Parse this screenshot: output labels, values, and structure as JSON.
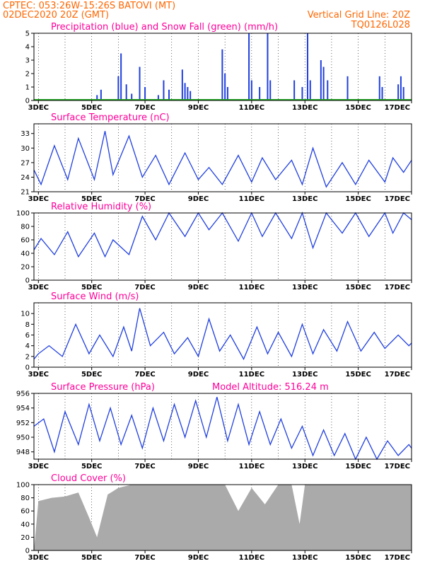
{
  "header": {
    "line1_left": "CPTEC:   053:26W-15:26S   BATOVI (MT)",
    "line2_left": "02DEC2020  20Z (GMT)",
    "line1_right": "Vertical Grid Line: 20Z",
    "line2_right": "TQ0126L028"
  },
  "colors": {
    "header": "#ff6600",
    "title": "#ff0099",
    "series": "#1f3fe0",
    "snow": "#22aa22",
    "cloud": "#aaaaaa"
  },
  "x_axis": {
    "labels": [
      "3DEC",
      "5DEC",
      "7DEC",
      "9DEC",
      "11DEC",
      "13DEC",
      "15DEC",
      "17DEC"
    ],
    "start_day": 2.833,
    "end_day": 17.0
  },
  "chart_data": [
    {
      "type": "bar",
      "title": "Precipitation (blue) and Snow Fall (green) (mm/h)",
      "ylim": [
        0,
        5
      ],
      "yticks": [
        0,
        1,
        2,
        3,
        4,
        5
      ],
      "series": [
        {
          "name": "Precipitation",
          "x": [
            5.2,
            5.35,
            6.0,
            6.1,
            6.3,
            6.5,
            6.8,
            7.0,
            7.5,
            7.7,
            7.9,
            8.4,
            8.5,
            8.6,
            8.7,
            9.9,
            10.0,
            10.1,
            10.9,
            11.0,
            11.3,
            11.6,
            11.7,
            12.6,
            12.9,
            13.1,
            13.2,
            13.6,
            13.7,
            13.85,
            14.6,
            15.8,
            15.9,
            16.5,
            16.6,
            16.7
          ],
          "values": [
            0.4,
            0.8,
            1.8,
            3.5,
            1.2,
            0.5,
            2.5,
            1.0,
            0.4,
            1.5,
            0.8,
            2.3,
            1.3,
            1.0,
            0.7,
            3.8,
            2.0,
            1.0,
            5.0,
            1.5,
            1.0,
            5.0,
            1.5,
            1.5,
            1.0,
            5.0,
            1.5,
            3.0,
            2.5,
            1.5,
            1.8,
            1.8,
            1.0,
            1.2,
            1.8,
            1.0
          ]
        },
        {
          "name": "Snow Fall",
          "x": [
            2.833,
            17.0
          ],
          "values": [
            0,
            0
          ]
        }
      ]
    },
    {
      "type": "line",
      "title": "Surface Temperature (nC)",
      "ylim": [
        21,
        35
      ],
      "yticks": [
        21,
        24,
        27,
        30,
        33
      ],
      "series": [
        {
          "x": [
            2.833,
            3.1,
            3.6,
            4.1,
            4.5,
            5.1,
            5.5,
            5.8,
            6.4,
            6.9,
            7.4,
            7.9,
            8.5,
            9.0,
            9.4,
            9.9,
            10.5,
            11.0,
            11.4,
            11.9,
            12.5,
            12.9,
            13.3,
            13.8,
            14.4,
            14.9,
            15.4,
            16.0,
            16.3,
            16.7,
            17.0
          ],
          "values": [
            25.5,
            22.5,
            30.5,
            23.5,
            32.0,
            23.5,
            33.5,
            24.5,
            32.5,
            24.0,
            28.5,
            22.5,
            29.0,
            23.5,
            26.0,
            22.5,
            28.5,
            23.0,
            28.0,
            23.5,
            27.5,
            22.5,
            30.0,
            22.0,
            27.0,
            22.5,
            27.5,
            23.0,
            28.0,
            25.0,
            27.5
          ]
        }
      ]
    },
    {
      "type": "line",
      "title": "Relative Humidity (%)",
      "ylim": [
        0,
        100
      ],
      "yticks": [
        0,
        20,
        40,
        60,
        80,
        100
      ],
      "series": [
        {
          "x": [
            2.833,
            3.1,
            3.6,
            4.1,
            4.5,
            5.1,
            5.5,
            5.8,
            6.4,
            6.9,
            7.4,
            7.9,
            8.5,
            9.0,
            9.4,
            9.9,
            10.5,
            11.0,
            11.4,
            11.9,
            12.5,
            12.9,
            13.3,
            13.8,
            14.4,
            14.9,
            15.4,
            16.0,
            16.3,
            16.7,
            17.0
          ],
          "values": [
            45,
            62,
            38,
            72,
            35,
            70,
            35,
            60,
            38,
            95,
            60,
            100,
            65,
            100,
            75,
            100,
            58,
            100,
            65,
            100,
            62,
            100,
            48,
            100,
            70,
            100,
            65,
            100,
            70,
            100,
            90
          ]
        }
      ]
    },
    {
      "type": "line",
      "title": "Surface Wind (m/s)",
      "ylim": [
        0,
        12
      ],
      "yticks": [
        0,
        2,
        4,
        6,
        8,
        10
      ],
      "series": [
        {
          "x": [
            2.833,
            3.0,
            3.4,
            3.9,
            4.4,
            4.9,
            5.3,
            5.8,
            6.2,
            6.5,
            6.8,
            7.2,
            7.7,
            8.1,
            8.6,
            9.0,
            9.4,
            9.8,
            10.2,
            10.7,
            11.2,
            11.6,
            12.0,
            12.5,
            12.9,
            13.3,
            13.7,
            14.2,
            14.6,
            15.1,
            15.6,
            16.0,
            16.5,
            16.9,
            17.0
          ],
          "values": [
            1.5,
            2.5,
            4.0,
            2.0,
            8.0,
            2.5,
            6.0,
            2.0,
            7.5,
            3.0,
            11.0,
            4.0,
            6.5,
            2.5,
            5.5,
            2.0,
            9.0,
            3.0,
            6.0,
            1.5,
            7.5,
            2.5,
            6.5,
            2.0,
            8.0,
            2.5,
            7.0,
            3.0,
            8.5,
            3.0,
            6.5,
            3.5,
            6.0,
            4.0,
            4.5
          ]
        }
      ]
    },
    {
      "type": "line",
      "title": "Surface Pressure (hPa)",
      "subtitle": "Model Altitude: 516.24 m",
      "ylim": [
        947,
        956
      ],
      "yticks": [
        948,
        950,
        952,
        954,
        956
      ],
      "series": [
        {
          "x": [
            2.833,
            3.2,
            3.6,
            4.0,
            4.5,
            4.9,
            5.3,
            5.7,
            6.1,
            6.5,
            6.9,
            7.3,
            7.7,
            8.1,
            8.5,
            8.9,
            9.3,
            9.7,
            10.1,
            10.5,
            10.9,
            11.3,
            11.7,
            12.1,
            12.5,
            12.9,
            13.3,
            13.7,
            14.1,
            14.5,
            14.9,
            15.3,
            15.7,
            16.1,
            16.5,
            16.9,
            17.0
          ],
          "values": [
            951.5,
            952.5,
            948.0,
            953.5,
            949.0,
            954.5,
            949.5,
            954.0,
            949.0,
            953.0,
            948.5,
            954.0,
            949.5,
            954.5,
            950.0,
            955.0,
            950.0,
            955.5,
            949.5,
            954.5,
            949.0,
            953.5,
            949.0,
            952.5,
            948.5,
            951.5,
            947.5,
            951.0,
            947.5,
            950.5,
            947.0,
            950.0,
            947.0,
            949.5,
            947.5,
            949.0,
            948.5
          ]
        }
      ]
    },
    {
      "type": "area",
      "title": "Cloud Cover (%)",
      "ylim": [
        0,
        100
      ],
      "yticks": [
        0,
        20,
        40,
        60,
        80,
        100
      ],
      "series": [
        {
          "x": [
            2.833,
            3.0,
            3.5,
            4.0,
            4.5,
            4.9,
            5.2,
            5.6,
            6.0,
            6.5,
            7.0,
            7.5,
            8.0,
            9.0,
            10.0,
            10.5,
            11.0,
            11.5,
            12.0,
            12.5,
            12.8,
            13.0,
            14.0,
            15.0,
            16.0,
            17.0
          ],
          "values": [
            0,
            75,
            80,
            82,
            88,
            50,
            20,
            85,
            95,
            100,
            100,
            100,
            100,
            100,
            100,
            60,
            95,
            70,
            100,
            100,
            40,
            100,
            100,
            100,
            100,
            100
          ]
        }
      ]
    }
  ]
}
